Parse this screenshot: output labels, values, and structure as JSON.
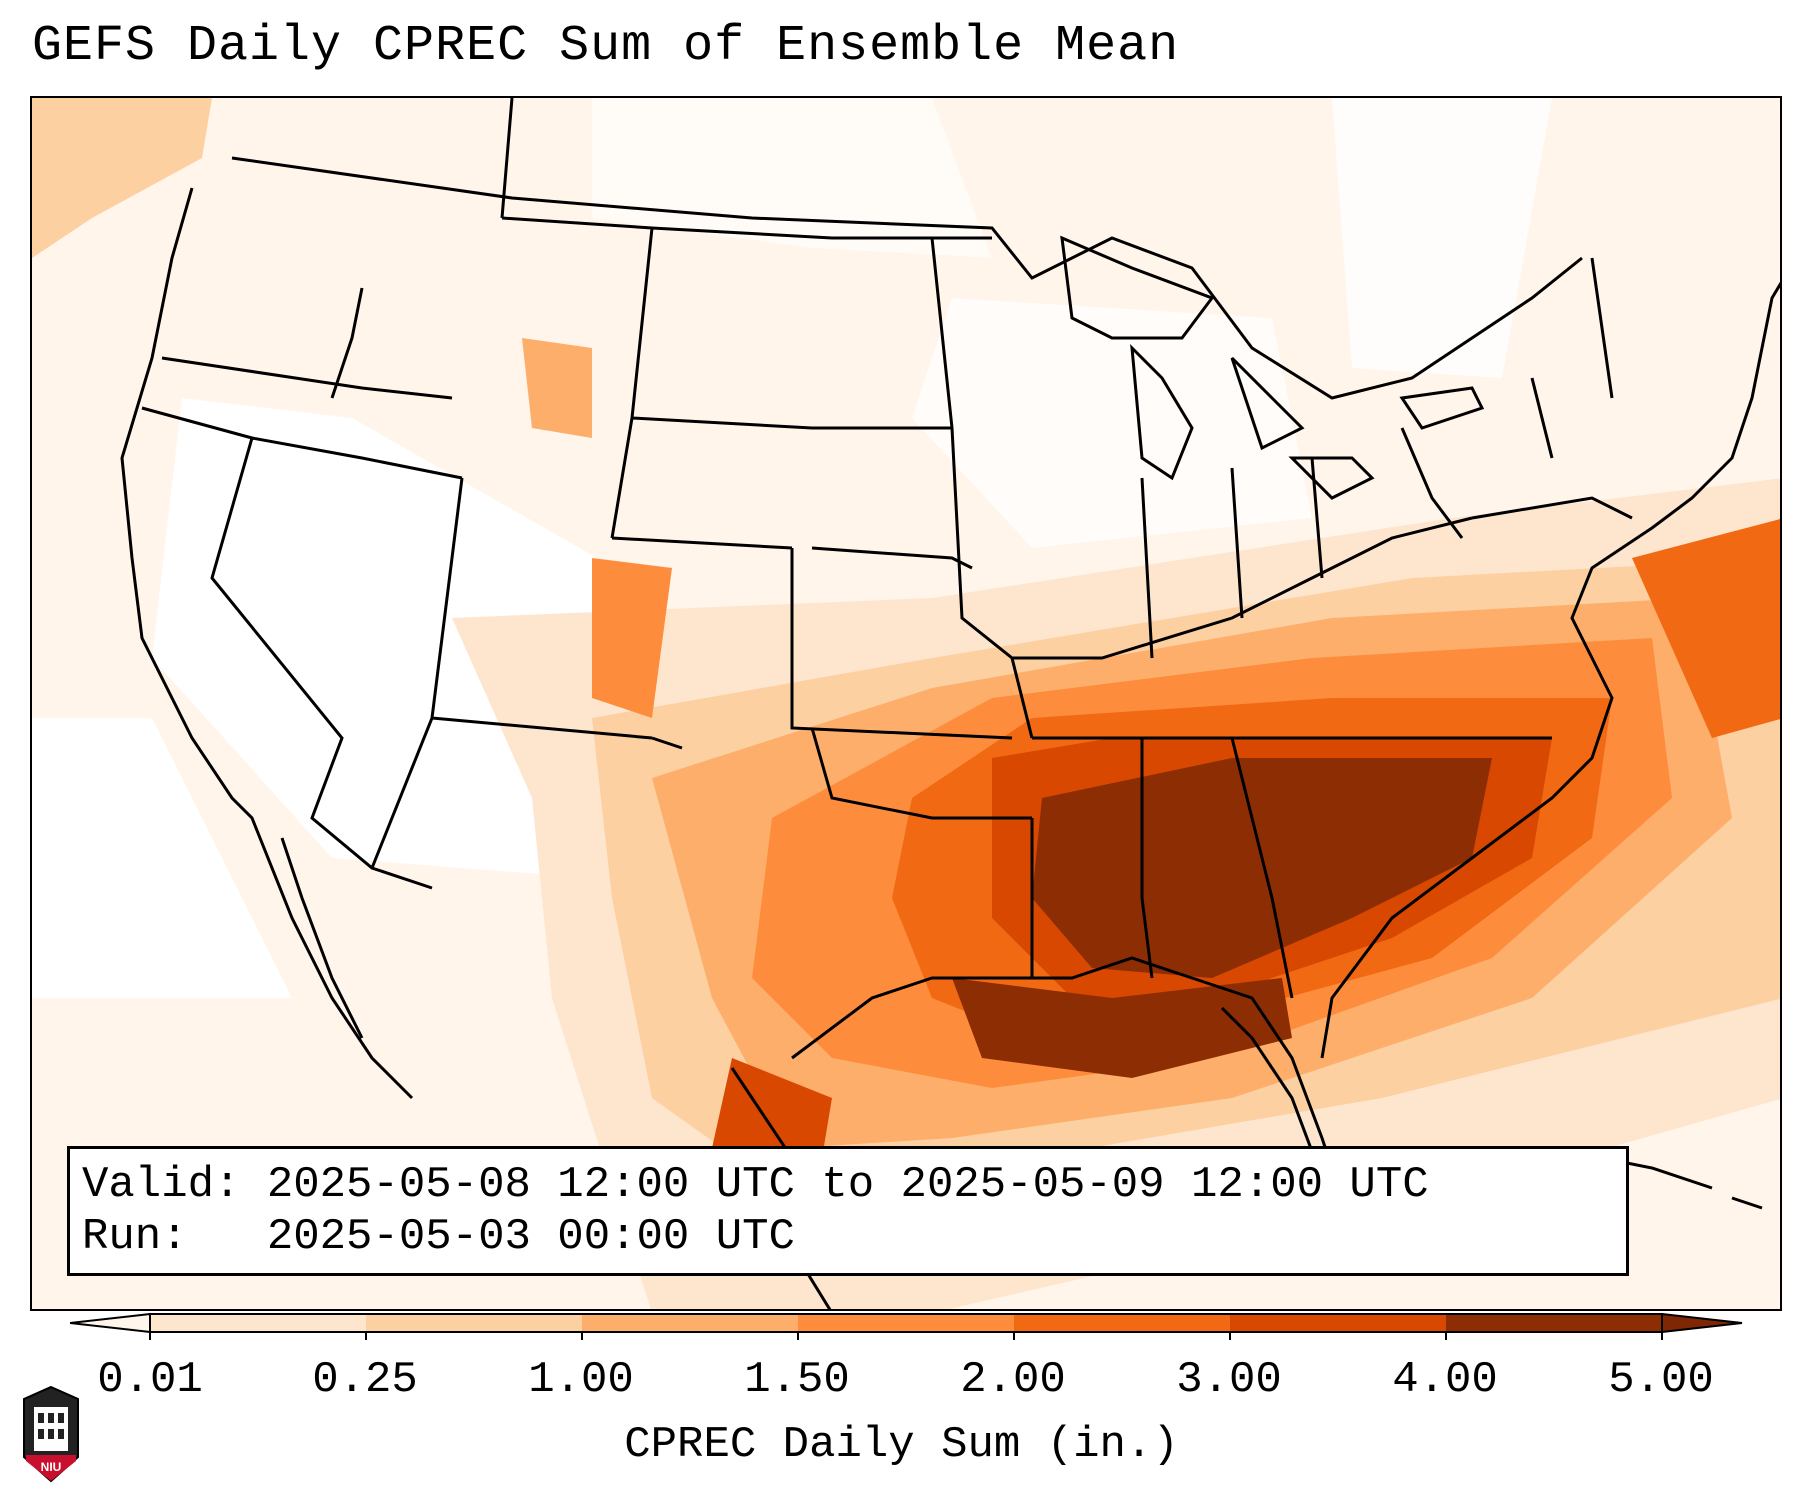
{
  "title": "GEFS Daily CPREC Sum of Ensemble Mean",
  "info": {
    "valid_label": "Valid:",
    "valid_value": "2025-05-08 12:00 UTC to 2025-05-09 12:00 UTC",
    "run_label": "Run:",
    "run_value": "2025-05-03 00:00 UTC"
  },
  "colorbar": {
    "label": "CPREC Daily Sum (in.)",
    "ticks": [
      "0.01",
      "0.25",
      "1.00",
      "1.50",
      "2.00",
      "3.00",
      "4.00",
      "5.00"
    ],
    "colors": [
      "#fee6ce",
      "#fdd0a2",
      "#fdae6b",
      "#fd8d3c",
      "#f16913",
      "#d94801",
      "#8c2d04"
    ],
    "under_color": "#fff5eb",
    "over_color": "#7f2704"
  },
  "logo": {
    "text": "NIU"
  },
  "colors": {
    "outline": "#000000",
    "background": "#fff5eb"
  }
}
